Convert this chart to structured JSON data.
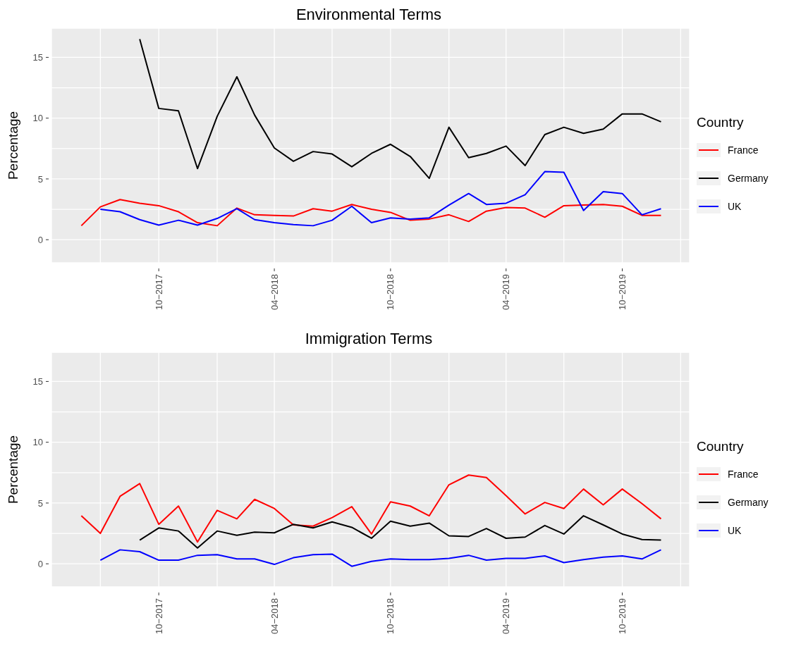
{
  "chart_data": [
    {
      "type": "line",
      "title": "Environmental Terms",
      "ylabel": "Percentage",
      "legend_title": "Country",
      "legend": "right",
      "grid": true,
      "line_style": "solid",
      "x": [
        "2017-06",
        "2017-07",
        "2017-08",
        "2017-09",
        "2017-10",
        "2017-11",
        "2017-12",
        "2018-01",
        "2018-02",
        "2018-03",
        "2018-04",
        "2018-05",
        "2018-06",
        "2018-07",
        "2018-08",
        "2018-09",
        "2018-10",
        "2018-11",
        "2018-12",
        "2019-01",
        "2019-02",
        "2019-03",
        "2019-04",
        "2019-05",
        "2019-06",
        "2019-07",
        "2019-08",
        "2019-09",
        "2019-10",
        "2019-11",
        "2019-12"
      ],
      "xlim": [
        "2017-04-15",
        "2020-01-15"
      ],
      "xticks": [
        {
          "value": "2017-07",
          "label": null
        },
        {
          "value": "2017-10",
          "label": "10−2017"
        },
        {
          "value": "2018-01",
          "label": null
        },
        {
          "value": "2018-04",
          "label": "04−2018"
        },
        {
          "value": "2018-07",
          "label": null
        },
        {
          "value": "2018-10",
          "label": "10−2018"
        },
        {
          "value": "2019-01",
          "label": null
        },
        {
          "value": "2019-04",
          "label": "04−2019"
        },
        {
          "value": "2019-07",
          "label": null
        },
        {
          "value": "2019-10",
          "label": "10−2019"
        },
        {
          "value": "2020-01",
          "label": null
        }
      ],
      "ylim": [
        -1.9,
        17.4
      ],
      "yticks": [
        0,
        {
          "value": 2.5,
          "label": null
        },
        5,
        {
          "value": 7.5,
          "label": null
        },
        10,
        {
          "value": 12.5,
          "label": null
        },
        15
      ],
      "series": [
        {
          "name": "France",
          "color": "#ff0000",
          "values": [
            1.15,
            2.7,
            3.3,
            3.0,
            2.8,
            2.3,
            1.4,
            1.15,
            2.6,
            2.05,
            2.0,
            1.95,
            2.55,
            2.35,
            2.9,
            2.5,
            2.25,
            1.6,
            1.7,
            2.05,
            1.5,
            2.35,
            2.65,
            2.6,
            1.85,
            2.8,
            2.85,
            2.9,
            2.75,
            2.0,
            2.0
          ]
        },
        {
          "name": "Germany",
          "color": "#000000",
          "values": [
            null,
            null,
            null,
            16.5,
            10.8,
            10.6,
            5.85,
            10.15,
            13.4,
            10.25,
            7.55,
            6.45,
            7.25,
            7.05,
            6.0,
            7.1,
            7.85,
            6.85,
            5.05,
            9.25,
            6.75,
            7.1,
            7.7,
            6.1,
            8.65,
            9.25,
            8.75,
            9.1,
            10.35,
            10.35,
            9.7
          ]
        },
        {
          "name": "UK",
          "color": "#0000ff",
          "values": [
            null,
            2.5,
            2.3,
            1.65,
            1.2,
            1.6,
            1.2,
            1.75,
            2.55,
            1.65,
            1.4,
            1.25,
            1.15,
            1.6,
            2.75,
            1.4,
            1.8,
            1.7,
            1.8,
            2.85,
            3.8,
            2.9,
            3.0,
            3.7,
            5.6,
            5.55,
            2.4,
            3.95,
            3.8,
            2.05,
            2.55
          ]
        }
      ]
    },
    {
      "type": "line",
      "title": "Immigration Terms",
      "ylabel": "Percentage",
      "legend_title": "Country",
      "legend": "right",
      "grid": true,
      "line_style": "solid",
      "x": [
        "2017-06",
        "2017-07",
        "2017-08",
        "2017-09",
        "2017-10",
        "2017-11",
        "2017-12",
        "2018-01",
        "2018-02",
        "2018-03",
        "2018-04",
        "2018-05",
        "2018-06",
        "2018-07",
        "2018-08",
        "2018-09",
        "2018-10",
        "2018-11",
        "2018-12",
        "2019-01",
        "2019-02",
        "2019-03",
        "2019-04",
        "2019-05",
        "2019-06",
        "2019-07",
        "2019-08",
        "2019-09",
        "2019-10",
        "2019-11",
        "2019-12"
      ],
      "xlim": [
        "2017-04-15",
        "2020-01-15"
      ],
      "xticks": [
        {
          "value": "2017-07",
          "label": null
        },
        {
          "value": "2017-10",
          "label": "10−2017"
        },
        {
          "value": "2018-01",
          "label": null
        },
        {
          "value": "2018-04",
          "label": "04−2018"
        },
        {
          "value": "2018-07",
          "label": null
        },
        {
          "value": "2018-10",
          "label": "10−2018"
        },
        {
          "value": "2019-01",
          "label": null
        },
        {
          "value": "2019-04",
          "label": "04−2019"
        },
        {
          "value": "2019-07",
          "label": null
        },
        {
          "value": "2019-10",
          "label": "10−2019"
        },
        {
          "value": "2020-01",
          "label": null
        }
      ],
      "ylim": [
        -1.9,
        17.4
      ],
      "yticks": [
        0,
        {
          "value": 2.5,
          "label": null
        },
        5,
        {
          "value": 7.5,
          "label": null
        },
        10,
        {
          "value": 12.5,
          "label": null
        },
        15
      ],
      "series": [
        {
          "name": "France",
          "color": "#ff0000",
          "values": [
            3.95,
            2.5,
            5.55,
            6.6,
            3.25,
            4.75,
            1.8,
            4.4,
            3.7,
            5.3,
            4.55,
            3.2,
            3.1,
            3.8,
            4.7,
            2.45,
            5.1,
            4.75,
            3.95,
            6.5,
            7.3,
            7.1,
            5.6,
            4.1,
            5.05,
            4.55,
            6.15,
            4.85,
            6.15,
            4.95,
            3.7
          ]
        },
        {
          "name": "Germany",
          "color": "#000000",
          "values": [
            null,
            null,
            null,
            1.95,
            2.95,
            2.7,
            1.3,
            2.7,
            2.35,
            2.6,
            2.55,
            3.25,
            2.95,
            3.45,
            3.0,
            2.1,
            3.5,
            3.1,
            3.35,
            2.3,
            2.25,
            2.9,
            2.1,
            2.2,
            3.15,
            2.45,
            3.95,
            3.2,
            2.45,
            2.0,
            1.95
          ]
        },
        {
          "name": "UK",
          "color": "#0000ff",
          "values": [
            null,
            0.3,
            1.15,
            1.0,
            0.3,
            0.3,
            0.7,
            0.75,
            0.4,
            0.4,
            -0.05,
            0.5,
            0.75,
            0.8,
            -0.2,
            0.2,
            0.4,
            0.35,
            0.35,
            0.45,
            0.7,
            0.3,
            0.45,
            0.45,
            0.65,
            0.1,
            0.35,
            0.55,
            0.65,
            0.4,
            1.15
          ]
        }
      ]
    }
  ]
}
